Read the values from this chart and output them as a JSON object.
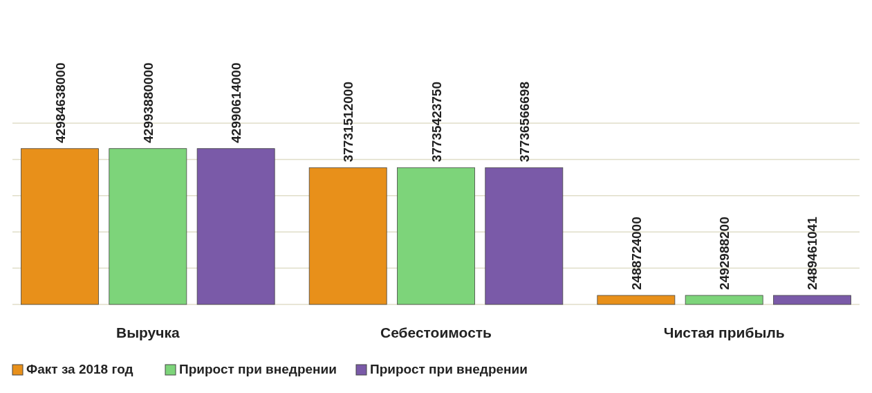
{
  "chart_data": {
    "type": "bar",
    "categories": [
      "Выручка",
      "Себестоимость",
      "Чистая прибыль"
    ],
    "series": [
      {
        "name": "Факт за 2018 год",
        "color": "#e8901a",
        "values": [
          42984638000,
          37731512000,
          2488724000
        ]
      },
      {
        "name": "Прирост при внедрении",
        "color": "#7dd47a",
        "values": [
          42993880000,
          37735423750,
          2492988200
        ]
      },
      {
        "name": "Прирост при внедрении",
        "color": "#7a5aa8",
        "values": [
          42990614000,
          37736566698,
          2489461041
        ]
      }
    ],
    "ylim": [
      0,
      50000000000
    ],
    "yticks": [
      {
        "value": 0,
        "label": null
      },
      {
        "value": 10000000000,
        "label": null
      },
      {
        "value": 20000000000,
        "label": null
      },
      {
        "value": 30000000000,
        "label": null
      },
      {
        "value": 40000000000,
        "label": null
      },
      {
        "value": 50000000000,
        "label": null
      }
    ],
    "tick_labels": "x",
    "grid": "y",
    "data_labels": true,
    "legend": "bottom"
  }
}
